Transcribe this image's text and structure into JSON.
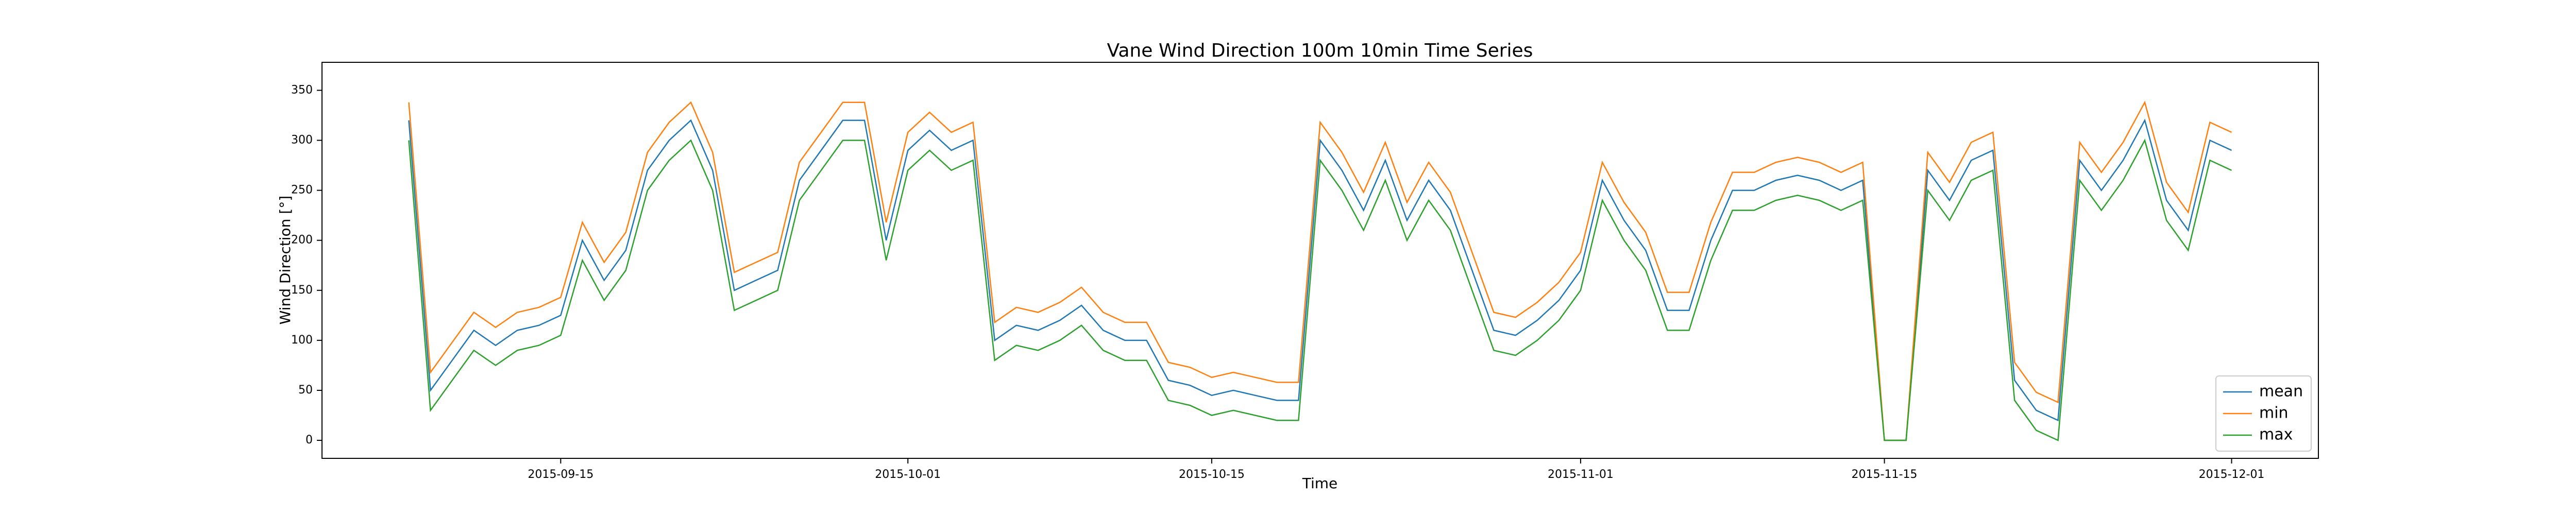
{
  "chart_data": {
    "type": "line",
    "title": "Vane Wind Direction 100m 10min Time Series",
    "xlabel": "Time",
    "ylabel": "Wind Direction [°]",
    "x": [
      "2015-09-08",
      "2015-09-09",
      "2015-09-10",
      "2015-09-11",
      "2015-09-12",
      "2015-09-13",
      "2015-09-14",
      "2015-09-15",
      "2015-09-16",
      "2015-09-17",
      "2015-09-18",
      "2015-09-19",
      "2015-09-20",
      "2015-09-21",
      "2015-09-22",
      "2015-09-23",
      "2015-09-24",
      "2015-09-25",
      "2015-09-26",
      "2015-09-27",
      "2015-09-28",
      "2015-09-29",
      "2015-09-30",
      "2015-10-01",
      "2015-10-02",
      "2015-10-03",
      "2015-10-04",
      "2015-10-05",
      "2015-10-06",
      "2015-10-07",
      "2015-10-08",
      "2015-10-09",
      "2015-10-10",
      "2015-10-11",
      "2015-10-12",
      "2015-10-13",
      "2015-10-14",
      "2015-10-15",
      "2015-10-16",
      "2015-10-17",
      "2015-10-18",
      "2015-10-19",
      "2015-10-20",
      "2015-10-21",
      "2015-10-22",
      "2015-10-23",
      "2015-10-24",
      "2015-10-25",
      "2015-10-26",
      "2015-10-27",
      "2015-10-28",
      "2015-10-29",
      "2015-10-30",
      "2015-10-31",
      "2015-11-01",
      "2015-11-02",
      "2015-11-03",
      "2015-11-04",
      "2015-11-05",
      "2015-11-06",
      "2015-11-07",
      "2015-11-08",
      "2015-11-09",
      "2015-11-10",
      "2015-11-11",
      "2015-11-12",
      "2015-11-13",
      "2015-11-14",
      "2015-11-15",
      "2015-11-16",
      "2015-11-17",
      "2015-11-18",
      "2015-11-19",
      "2015-11-20",
      "2015-11-21",
      "2015-11-22",
      "2015-11-23",
      "2015-11-24",
      "2015-11-25",
      "2015-11-26",
      "2015-11-27",
      "2015-11-28",
      "2015-11-29",
      "2015-11-30",
      "2015-12-01"
    ],
    "series": [
      {
        "name": "mean",
        "color": "#1f77b4",
        "values": [
          320,
          50,
          80,
          110,
          95,
          110,
          115,
          125,
          200,
          160,
          190,
          270,
          300,
          320,
          270,
          150,
          160,
          170,
          260,
          290,
          320,
          320,
          200,
          290,
          310,
          290,
          300,
          100,
          115,
          110,
          120,
          135,
          110,
          100,
          100,
          60,
          55,
          45,
          50,
          45,
          40,
          40,
          300,
          270,
          230,
          280,
          220,
          260,
          230,
          170,
          110,
          105,
          120,
          140,
          170,
          260,
          220,
          190,
          130,
          130,
          200,
          250,
          250,
          260,
          265,
          260,
          250,
          260,
          0,
          0,
          270,
          240,
          280,
          290,
          60,
          30,
          20,
          280,
          250,
          280,
          320,
          240,
          210,
          300,
          290
        ]
      },
      {
        "name": "min",
        "color": "#ff7f0e",
        "values": [
          338,
          68,
          98,
          128,
          113,
          128,
          133,
          143,
          218,
          178,
          208,
          288,
          318,
          338,
          288,
          168,
          178,
          188,
          278,
          308,
          338,
          338,
          218,
          308,
          328,
          308,
          318,
          118,
          133,
          128,
          138,
          153,
          128,
          118,
          118,
          78,
          73,
          63,
          68,
          63,
          58,
          58,
          318,
          288,
          248,
          298,
          238,
          278,
          248,
          188,
          128,
          123,
          138,
          158,
          188,
          278,
          238,
          208,
          148,
          148,
          218,
          268,
          268,
          278,
          283,
          278,
          268,
          278,
          0,
          0,
          288,
          258,
          298,
          308,
          78,
          48,
          38,
          298,
          268,
          298,
          338,
          258,
          228,
          318,
          308
        ]
      },
      {
        "name": "max",
        "color": "#2ca02c",
        "values": [
          300,
          30,
          60,
          90,
          75,
          90,
          95,
          105,
          180,
          140,
          170,
          250,
          280,
          300,
          250,
          130,
          140,
          150,
          240,
          270,
          300,
          300,
          180,
          270,
          290,
          270,
          280,
          80,
          95,
          90,
          100,
          115,
          90,
          80,
          80,
          40,
          35,
          25,
          30,
          25,
          20,
          20,
          280,
          250,
          210,
          260,
          200,
          240,
          210,
          150,
          90,
          85,
          100,
          120,
          150,
          240,
          200,
          170,
          110,
          110,
          180,
          230,
          230,
          240,
          245,
          240,
          230,
          240,
          0,
          0,
          250,
          220,
          260,
          270,
          40,
          10,
          0,
          260,
          230,
          260,
          300,
          220,
          190,
          280,
          270
        ]
      }
    ],
    "xlim": [
      "2015-09-04",
      "2015-12-05"
    ],
    "xticks": [
      "2015-09-15",
      "2015-10-01",
      "2015-10-15",
      "2015-11-01",
      "2015-11-15",
      "2015-12-01"
    ],
    "ylim": [
      -18,
      378
    ],
    "yticks": [
      0,
      50,
      100,
      150,
      200,
      250,
      300,
      350
    ],
    "legend": "lower right"
  }
}
